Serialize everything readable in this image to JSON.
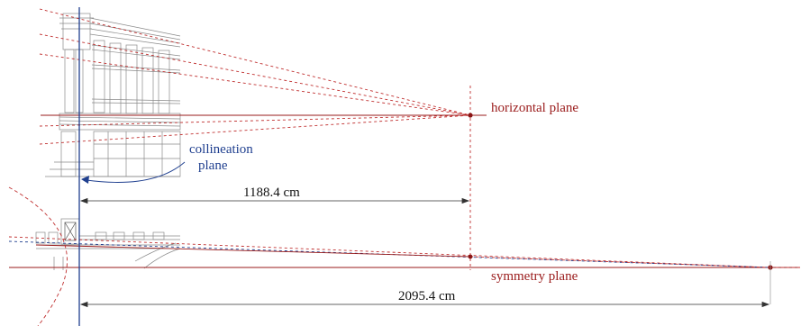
{
  "labels": {
    "horizontal_plane": "horizontal plane",
    "collineation_line1": "collineation",
    "collineation_line2": "plane",
    "distance_top": "1188.4 cm",
    "symmetry_plane": "symmetry plane",
    "distance_bottom": "2095.4 cm"
  },
  "colors": {
    "red": "#9a1b1b",
    "red_dashed": "#c03030",
    "blue": "#1f3f8f",
    "drawing": "#8a8a8a",
    "dimension": "#333333"
  }
}
